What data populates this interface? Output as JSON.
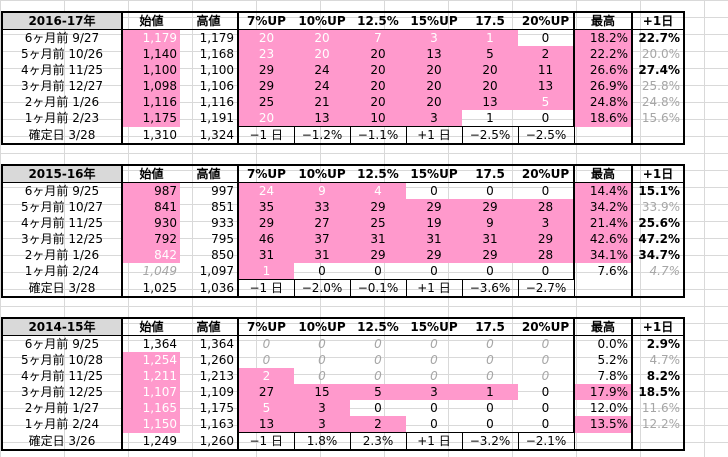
{
  "headers": [
    "始値",
    "高値",
    "7%UP",
    "10%UP",
    "12.5%",
    "15%UP",
    "17.5",
    "20%UP",
    "最高",
    "+1日"
  ],
  "tables": [
    {
      "title": "2016-17年",
      "rows": [
        {
          "label": "6ヶ月前  9/27",
          "open": "1,179",
          "high": "1,179",
          "v": [
            "20",
            "20",
            "7",
            "3",
            "1",
            "0"
          ],
          "max": "18.2%",
          "plus": "22.7%"
        },
        {
          "label": "5ヶ月前  10/26",
          "open": "1,140",
          "high": "1,168",
          "v": [
            "23",
            "20",
            "20",
            "13",
            "5",
            "2"
          ],
          "max": "22.2%",
          "plus": "20.0%"
        },
        {
          "label": "4ヶ月前  11/25",
          "open": "1,100",
          "high": "1,100",
          "v": [
            "29",
            "24",
            "20",
            "20",
            "20",
            "11"
          ],
          "max": "26.6%",
          "plus": "27.4%"
        },
        {
          "label": "3ヶ月前  12/27",
          "open": "1,098",
          "high": "1,106",
          "v": [
            "29",
            "24",
            "20",
            "20",
            "20",
            "13"
          ],
          "max": "26.9%",
          "plus": "25.8%"
        },
        {
          "label": "2ヶ月前  1/26",
          "open": "1,116",
          "high": "1,116",
          "v": [
            "25",
            "21",
            "20",
            "20",
            "13",
            "5"
          ],
          "max": "24.8%",
          "plus": "24.8%"
        },
        {
          "label": "1ヶ月前  2/23",
          "open": "1,175",
          "high": "1,191",
          "v": [
            "20",
            "13",
            "10",
            "3",
            "1",
            "0"
          ],
          "max": "18.6%",
          "plus": "15.6%"
        }
      ],
      "final": {
        "label": "確定日  3/28",
        "open": "1,310",
        "high": "1,324",
        "v": [
          "−1 日",
          "−1.2%",
          "−1.1%",
          "+1 日",
          "−2.5%",
          "−2.5%"
        ]
      }
    },
    {
      "title": "2015-16年",
      "rows": [
        {
          "label": "6ヶ月前  9/25",
          "open": "987",
          "high": "997",
          "v": [
            "24",
            "9",
            "4",
            "0",
            "0",
            "0"
          ],
          "max": "14.4%",
          "plus": "15.1%"
        },
        {
          "label": "5ヶ月前  10/27",
          "open": "841",
          "high": "851",
          "v": [
            "35",
            "33",
            "29",
            "29",
            "29",
            "28"
          ],
          "max": "34.2%",
          "plus": "33.9%"
        },
        {
          "label": "4ヶ月前  11/25",
          "open": "930",
          "high": "933",
          "v": [
            "29",
            "27",
            "25",
            "19",
            "9",
            "3"
          ],
          "max": "21.4%",
          "plus": "25.6%"
        },
        {
          "label": "3ヶ月前  12/25",
          "open": "792",
          "high": "795",
          "v": [
            "46",
            "37",
            "31",
            "31",
            "31",
            "29"
          ],
          "max": "42.6%",
          "plus": "47.2%"
        },
        {
          "label": "2ヶ月前  1/26",
          "open": "842",
          "high": "850",
          "v": [
            "31",
            "31",
            "29",
            "29",
            "29",
            "28"
          ],
          "max": "34.1%",
          "plus": "34.7%"
        },
        {
          "label": "1ヶ月前  2/24",
          "open": "1,049",
          "high": "1,097",
          "v": [
            "1",
            "0",
            "0",
            "0",
            "0",
            "0"
          ],
          "max": "7.6%",
          "plus": "4.7%"
        }
      ],
      "final": {
        "label": "確定日  3/28",
        "open": "1,025",
        "high": "1,036",
        "v": [
          "−1 日",
          "−2.0%",
          "−0.1%",
          "+1 日",
          "−3.6%",
          "−2.7%"
        ]
      }
    },
    {
      "title": "2014-15年",
      "rows": [
        {
          "label": "6ヶ月前  9/25",
          "open": "1,364",
          "high": "1,364",
          "v": [
            "0",
            "0",
            "0",
            "0",
            "0",
            "0"
          ],
          "max": "0.0%",
          "plus": "2.9%"
        },
        {
          "label": "5ヶ月前  10/28",
          "open": "1,254",
          "high": "1,260",
          "v": [
            "0",
            "0",
            "0",
            "0",
            "0",
            "0"
          ],
          "max": "5.2%",
          "plus": "4.7%"
        },
        {
          "label": "4ヶ月前  11/25",
          "open": "1,211",
          "high": "1,213",
          "v": [
            "2",
            "0",
            "0",
            "0",
            "0",
            "0"
          ],
          "max": "7.8%",
          "plus": "8.2%"
        },
        {
          "label": "3ヶ月前  12/25",
          "open": "1,107",
          "high": "1,109",
          "v": [
            "27",
            "15",
            "5",
            "3",
            "1",
            "0"
          ],
          "max": "17.9%",
          "plus": "18.5%"
        },
        {
          "label": "2ヶ月前  1/27",
          "open": "1,165",
          "high": "1,175",
          "v": [
            "5",
            "3",
            "0",
            "0",
            "0",
            "0"
          ],
          "max": "12.0%",
          "plus": "11.6%"
        },
        {
          "label": "1ヶ月前  2/24",
          "open": "1,150",
          "high": "1,163",
          "v": [
            "13",
            "3",
            "2",
            "0",
            "0",
            "0"
          ],
          "max": "13.5%",
          "plus": "12.2%"
        }
      ],
      "final": {
        "label": "確定日  3/26",
        "open": "1,249",
        "high": "1,260",
        "v": [
          "−1 日",
          "1.8%",
          "2.3%",
          "+1 日",
          "−3.2%",
          "−2.1%"
        ]
      }
    }
  ],
  "colors": {
    "pink": "#ff99cc",
    "gray_text": "#a6a6a6",
    "header_bg": "#d9d9d9"
  }
}
